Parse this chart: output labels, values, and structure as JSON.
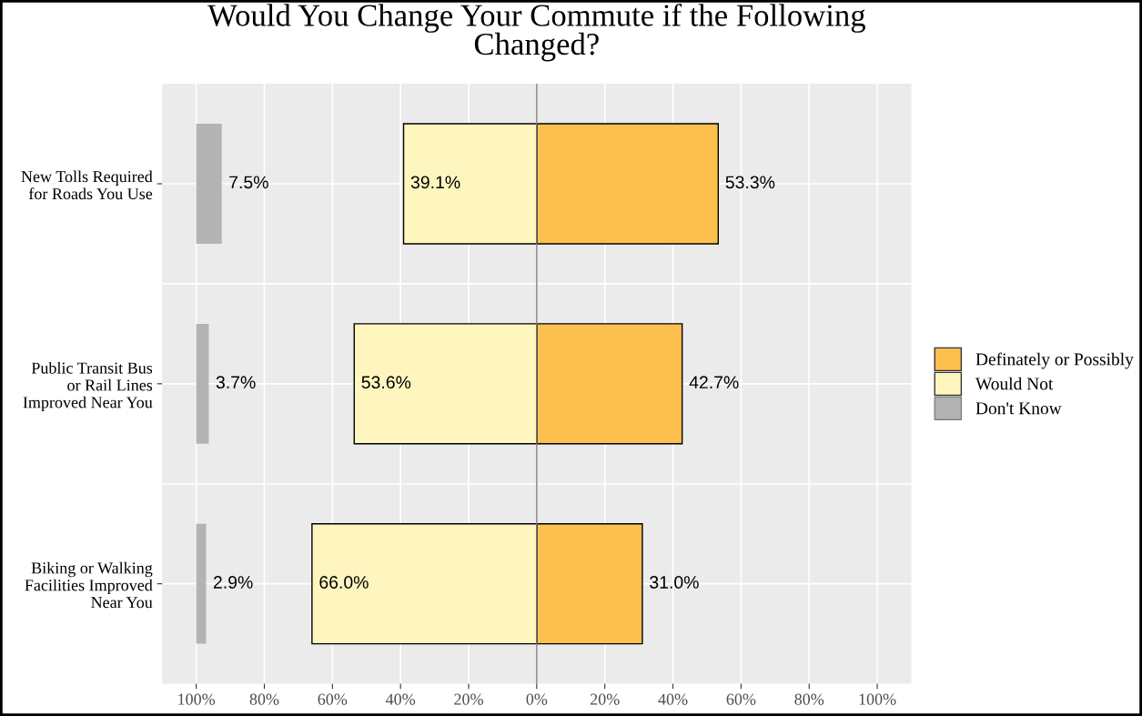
{
  "chart_data": {
    "type": "bar",
    "orientation": "horizontal",
    "title": "Would You Change Your Commute if the Following\nChanged?",
    "categories": [
      "New Tolls Required\nfor Roads You Use",
      "Public Transit Bus\nor Rail Lines\nImproved Near You",
      "Biking or Walking\nFacilities Improved\nNear You"
    ],
    "series": [
      {
        "name": "Definately or Possibly",
        "color": "#fdc04f",
        "values": [
          53.3,
          42.7,
          31.0
        ],
        "base": [
          0,
          0,
          0
        ],
        "value_labels": [
          "53.3%",
          "42.7%",
          "31.0%"
        ]
      },
      {
        "name": "Would Not",
        "color": "#fff5bf",
        "values": [
          39.1,
          53.6,
          66.0
        ],
        "base": [
          -39.1,
          -53.6,
          -66.0
        ],
        "value_labels": [
          "39.1%",
          "53.6%",
          "66.0%"
        ]
      },
      {
        "name": "Don't Know",
        "color": "#b3b3b3",
        "values": [
          7.5,
          3.7,
          2.9
        ],
        "base": [
          -100,
          -100,
          -100
        ],
        "value_labels": [
          "7.5%",
          "3.7%",
          "2.9%"
        ]
      }
    ],
    "xlim": [
      -110,
      110
    ],
    "xticks": [
      {
        "value": -100,
        "label": "100%"
      },
      {
        "value": -80,
        "label": "80%"
      },
      {
        "value": -60,
        "label": "60%"
      },
      {
        "value": -40,
        "label": "40%"
      },
      {
        "value": -20,
        "label": "20%"
      },
      {
        "value": 0,
        "label": "0%"
      },
      {
        "value": 20,
        "label": "20%"
      },
      {
        "value": 40,
        "label": "40%"
      },
      {
        "value": 60,
        "label": "60%"
      },
      {
        "value": 80,
        "label": "80%"
      },
      {
        "value": 100,
        "label": "100%"
      }
    ],
    "ref_lines": [
      {
        "axis": "x",
        "value": 0,
        "color": "#808080"
      }
    ],
    "grid": true,
    "legend": "right"
  }
}
